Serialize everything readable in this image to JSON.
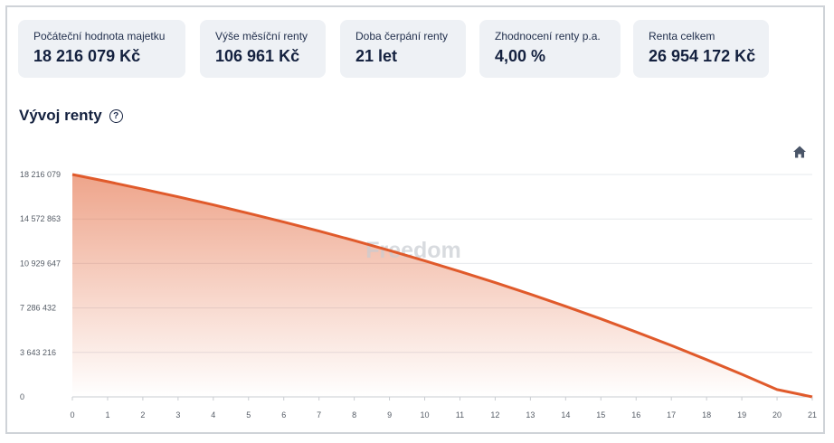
{
  "cards": [
    {
      "label": "Počáteční hodnota majetku",
      "value": "18 216 079 Kč"
    },
    {
      "label": "Výše měsíční renty",
      "value": "106 961 Kč"
    },
    {
      "label": "Doba čerpání renty",
      "value": "21 let"
    },
    {
      "label": "Zhodnocení renty p.a.",
      "value": "4,00 %"
    },
    {
      "label": "Renta celkem",
      "value": "26 954 172 Kč"
    }
  ],
  "chart_title": "Vývoj renty",
  "watermark": "Freedom",
  "icons": [
    "help-icon",
    "home-icon"
  ],
  "colors": {
    "line": "#e05a2b",
    "fill": "#e05a2b",
    "grid": "#e6e8ec"
  },
  "chart_data": {
    "type": "area",
    "title": "Vývoj renty",
    "xlabel": "",
    "ylabel": "",
    "x": [
      0,
      1,
      2,
      3,
      4,
      5,
      6,
      7,
      8,
      9,
      10,
      11,
      12,
      13,
      14,
      15,
      16,
      17,
      18,
      19,
      20,
      21
    ],
    "values": [
      18216079,
      17630000,
      17020000,
      16390000,
      15730000,
      15040000,
      14320000,
      13580000,
      12800000,
      11990000,
      11150000,
      10270000,
      9360000,
      8410000,
      7420000,
      6390000,
      5320000,
      4210000,
      3050000,
      1850000,
      600000,
      0
    ],
    "yticks": [
      "0",
      "3 643 216",
      "7 286 432",
      "10 929 647",
      "14 572 863",
      "18 216 079"
    ],
    "ytick_values": [
      0,
      3643216,
      7286432,
      10929647,
      14572863,
      18216079
    ],
    "xticks": [
      "0",
      "1",
      "2",
      "3",
      "4",
      "5",
      "6",
      "7",
      "8",
      "9",
      "10",
      "11",
      "12",
      "13",
      "14",
      "15",
      "16",
      "17",
      "18",
      "19",
      "20",
      "21"
    ],
    "xlim": [
      0,
      21
    ],
    "ylim": [
      0,
      18216079
    ],
    "grid": true,
    "legend": "none"
  }
}
